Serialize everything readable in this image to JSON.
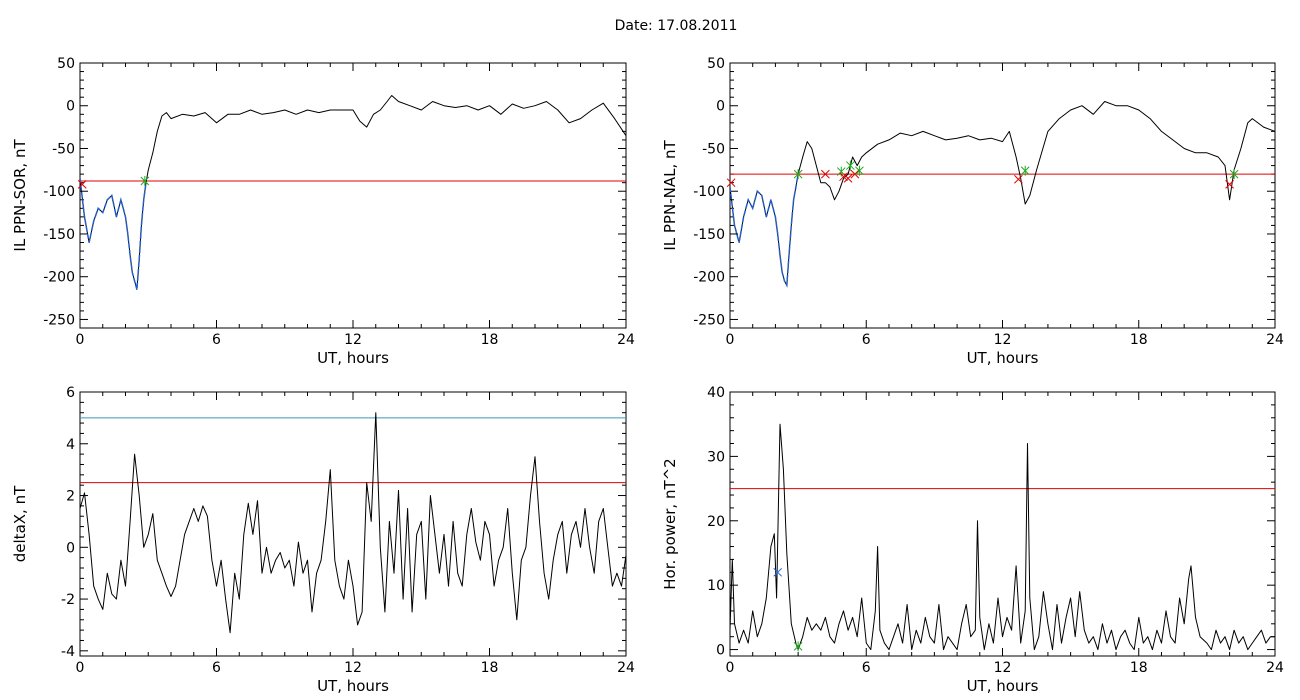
{
  "title": "Date:  17.08.2011",
  "chart_data": [
    {
      "type": "line",
      "xlabel": "UT, hours",
      "ylabel": "IL PPN-SOR, nT",
      "xlim": [
        0,
        24
      ],
      "ylim": [
        -260,
        50
      ],
      "xticks": [
        0,
        6,
        12,
        18,
        24
      ],
      "yticks": [
        -250,
        -200,
        -150,
        -100,
        -50,
        0,
        50
      ],
      "threshold_lines": [
        {
          "value": -88,
          "color": "#e00000"
        }
      ],
      "highlight": {
        "x_range": [
          0,
          2.9
        ],
        "color": "#1f5fd6"
      },
      "markers": [
        {
          "x": 0.1,
          "y": -92,
          "color": "#e00000"
        },
        {
          "x": 2.85,
          "y": -88,
          "color": "#1faa1f"
        }
      ],
      "series": [
        {
          "color": "#000000",
          "x": [
            0,
            0.2,
            0.4,
            0.6,
            0.8,
            1.0,
            1.2,
            1.4,
            1.6,
            1.8,
            2.0,
            2.1,
            2.2,
            2.3,
            2.4,
            2.5,
            2.6,
            2.7,
            2.8,
            2.9,
            3.0,
            3.2,
            3.4,
            3.6,
            3.8,
            4.0,
            4.5,
            5.0,
            5.5,
            6.0,
            6.5,
            7.0,
            7.5,
            8.0,
            8.5,
            9.0,
            9.5,
            10.0,
            10.5,
            11.0,
            11.5,
            12.0,
            12.3,
            12.6,
            12.9,
            13.2,
            13.5,
            13.7,
            14.0,
            14.5,
            15.0,
            15.5,
            16.0,
            16.5,
            17.0,
            17.5,
            18.0,
            18.5,
            19.0,
            19.5,
            20.0,
            20.5,
            21.0,
            21.5,
            22.0,
            22.5,
            23.0,
            23.5,
            24.0
          ],
          "y": [
            -85,
            -130,
            -160,
            -135,
            -120,
            -125,
            -110,
            -105,
            -130,
            -110,
            -130,
            -150,
            -175,
            -195,
            -205,
            -215,
            -180,
            -140,
            -110,
            -90,
            -75,
            -55,
            -30,
            -12,
            -8,
            -15,
            -10,
            -12,
            -8,
            -20,
            -10,
            -10,
            -5,
            -10,
            -8,
            -5,
            -10,
            -5,
            -8,
            -5,
            -5,
            -5,
            -18,
            -25,
            -10,
            -5,
            5,
            12,
            5,
            0,
            -5,
            5,
            0,
            -2,
            0,
            -5,
            0,
            -10,
            2,
            -3,
            0,
            5,
            -5,
            -20,
            -15,
            -5,
            3,
            -15,
            -35
          ]
        }
      ]
    },
    {
      "type": "line",
      "xlabel": "UT, hours",
      "ylabel": "IL PPN-NAL, nT",
      "xlim": [
        0,
        24
      ],
      "ylim": [
        -260,
        50
      ],
      "xticks": [
        0,
        6,
        12,
        18,
        24
      ],
      "yticks": [
        -250,
        -200,
        -150,
        -100,
        -50,
        0,
        50
      ],
      "threshold_lines": [
        {
          "value": -80,
          "color": "#e00000"
        }
      ],
      "highlight": {
        "x_range": [
          0,
          3.0
        ],
        "color": "#1f5fd6"
      },
      "markers": [
        {
          "x": 0.05,
          "y": -90,
          "color": "#e00000"
        },
        {
          "x": 3.0,
          "y": -80,
          "color": "#1faa1f"
        },
        {
          "x": 4.2,
          "y": -80,
          "color": "#e00000"
        },
        {
          "x": 4.9,
          "y": -77,
          "color": "#1faa1f"
        },
        {
          "x": 5.0,
          "y": -83,
          "color": "#e00000"
        },
        {
          "x": 5.2,
          "y": -85,
          "color": "#e00000"
        },
        {
          "x": 5.3,
          "y": -70,
          "color": "#1faa1f"
        },
        {
          "x": 5.5,
          "y": -80,
          "color": "#e00000"
        },
        {
          "x": 5.7,
          "y": -76,
          "color": "#1faa1f"
        },
        {
          "x": 12.7,
          "y": -86,
          "color": "#e00000"
        },
        {
          "x": 13.0,
          "y": -76,
          "color": "#1faa1f"
        },
        {
          "x": 22.0,
          "y": -92,
          "color": "#e00000"
        },
        {
          "x": 22.2,
          "y": -80,
          "color": "#1faa1f"
        }
      ],
      "series": [
        {
          "color": "#000000",
          "x": [
            0,
            0.2,
            0.4,
            0.6,
            0.8,
            1.0,
            1.2,
            1.4,
            1.6,
            1.8,
            2.0,
            2.1,
            2.2,
            2.3,
            2.4,
            2.5,
            2.6,
            2.7,
            2.8,
            2.9,
            3.0,
            3.2,
            3.4,
            3.6,
            3.8,
            4.0,
            4.2,
            4.4,
            4.6,
            4.8,
            5.0,
            5.2,
            5.4,
            5.6,
            5.8,
            6.0,
            6.5,
            7.0,
            7.5,
            8.0,
            8.5,
            9.0,
            9.5,
            10.0,
            10.5,
            11.0,
            11.5,
            12.0,
            12.3,
            12.6,
            12.8,
            13.0,
            13.2,
            13.5,
            14.0,
            14.5,
            15.0,
            15.5,
            16.0,
            16.5,
            17.0,
            17.5,
            18.0,
            18.5,
            19.0,
            19.5,
            20.0,
            20.5,
            21.0,
            21.5,
            21.8,
            22.0,
            22.2,
            22.5,
            22.8,
            23.0,
            23.5,
            24.0
          ],
          "y": [
            -95,
            -140,
            -160,
            -130,
            -110,
            -120,
            -100,
            -105,
            -130,
            -110,
            -130,
            -150,
            -175,
            -195,
            -205,
            -210,
            -175,
            -140,
            -110,
            -95,
            -80,
            -60,
            -42,
            -50,
            -70,
            -90,
            -90,
            -95,
            -110,
            -100,
            -85,
            -80,
            -60,
            -70,
            -60,
            -55,
            -45,
            -40,
            -32,
            -35,
            -30,
            -35,
            -40,
            -38,
            -35,
            -40,
            -38,
            -42,
            -30,
            -60,
            -85,
            -115,
            -105,
            -75,
            -30,
            -15,
            -5,
            0,
            -10,
            5,
            0,
            0,
            -5,
            -15,
            -30,
            -40,
            -50,
            -55,
            -55,
            -60,
            -70,
            -110,
            -75,
            -50,
            -20,
            -15,
            -25,
            -30
          ]
        }
      ]
    },
    {
      "type": "line",
      "xlabel": "UT, hours",
      "ylabel": "deltaX, nT",
      "xlim": [
        0,
        24
      ],
      "ylim": [
        -4.2,
        6
      ],
      "xticks": [
        0,
        6,
        12,
        18,
        24
      ],
      "yticks": [
        -4,
        -2,
        0,
        2,
        4,
        6
      ],
      "threshold_lines": [
        {
          "value": 5.0,
          "color": "#3a96b8"
        },
        {
          "value": 2.5,
          "color": "#e00000"
        }
      ],
      "markers": [],
      "series": [
        {
          "color": "#000000",
          "x": [
            0,
            0.2,
            0.4,
            0.6,
            0.8,
            1.0,
            1.2,
            1.4,
            1.6,
            1.8,
            2.0,
            2.2,
            2.4,
            2.6,
            2.8,
            3.0,
            3.2,
            3.4,
            3.6,
            3.8,
            4.0,
            4.2,
            4.4,
            4.6,
            4.8,
            5.0,
            5.2,
            5.4,
            5.6,
            5.8,
            6.0,
            6.2,
            6.4,
            6.6,
            6.8,
            7.0,
            7.2,
            7.4,
            7.6,
            7.8,
            8.0,
            8.2,
            8.4,
            8.6,
            8.8,
            9.0,
            9.2,
            9.4,
            9.6,
            9.8,
            10.0,
            10.2,
            10.4,
            10.6,
            10.8,
            11.0,
            11.2,
            11.4,
            11.6,
            11.8,
            12.0,
            12.2,
            12.4,
            12.6,
            12.8,
            13.0,
            13.2,
            13.4,
            13.6,
            13.8,
            14.0,
            14.2,
            14.4,
            14.6,
            14.8,
            15.0,
            15.2,
            15.4,
            15.6,
            15.8,
            16.0,
            16.2,
            16.4,
            16.6,
            16.8,
            17.0,
            17.2,
            17.4,
            17.6,
            17.8,
            18.0,
            18.2,
            18.4,
            18.6,
            18.8,
            19.0,
            19.2,
            19.4,
            19.6,
            19.8,
            20.0,
            20.2,
            20.4,
            20.6,
            20.8,
            21.0,
            21.2,
            21.4,
            21.6,
            21.8,
            22.0,
            22.2,
            22.4,
            22.6,
            22.8,
            23.0,
            23.2,
            23.4,
            23.6,
            23.8,
            24.0
          ],
          "y": [
            1.5,
            2.1,
            0.5,
            -1.5,
            -2.0,
            -2.4,
            -1.0,
            -1.8,
            -2.0,
            -0.5,
            -1.5,
            1.0,
            3.6,
            2.0,
            0.0,
            0.5,
            1.3,
            -0.5,
            -1.0,
            -1.5,
            -1.9,
            -1.5,
            -0.5,
            0.5,
            1.0,
            1.5,
            1.0,
            1.6,
            1.2,
            -0.5,
            -1.5,
            -0.5,
            -2.0,
            -3.3,
            -1.0,
            -2.0,
            0.5,
            1.7,
            0.5,
            1.8,
            -1.0,
            0.0,
            -1.0,
            -0.5,
            -0.2,
            -0.8,
            -0.5,
            -1.5,
            0.2,
            -1.0,
            -0.5,
            -2.5,
            -1.0,
            -0.5,
            1.0,
            3.0,
            -0.5,
            -1.5,
            -2.0,
            -0.5,
            -1.5,
            -3.0,
            -2.5,
            2.5,
            1.0,
            5.2,
            0.0,
            -2.5,
            1.0,
            -1.0,
            2.2,
            -2.0,
            1.5,
            -2.5,
            0.5,
            1.0,
            -2.0,
            2.0,
            0.5,
            -1.0,
            0.5,
            -1.5,
            1.0,
            -1.0,
            -1.5,
            0.5,
            1.5,
            0.2,
            -0.5,
            1.0,
            0.5,
            -1.5,
            -0.5,
            0.0,
            1.5,
            -1.0,
            -2.8,
            -0.5,
            0.0,
            2.0,
            3.5,
            1.0,
            -1.0,
            -2.0,
            -0.5,
            0.5,
            1.0,
            -1.0,
            0.5,
            1.0,
            0.0,
            1.5,
            0.0,
            -1.0,
            1.0,
            1.5,
            0.0,
            -1.5,
            -1.0,
            -1.5,
            -0.3
          ]
        }
      ]
    },
    {
      "type": "line",
      "xlabel": "UT, hours",
      "ylabel": "Hor. power, nT^2",
      "xlim": [
        0,
        24
      ],
      "ylim": [
        -1,
        40
      ],
      "xticks": [
        0,
        6,
        12,
        18,
        24
      ],
      "yticks": [
        0,
        10,
        20,
        30,
        40
      ],
      "threshold_lines": [
        {
          "value": 25,
          "color": "#e00000"
        }
      ],
      "markers": [
        {
          "x": 2.1,
          "y": 12,
          "color": "#1f5fd6"
        },
        {
          "x": 3.0,
          "y": 0.5,
          "color": "#1faa1f"
        }
      ],
      "series": [
        {
          "color": "#000000",
          "x": [
            0,
            0.1,
            0.2,
            0.4,
            0.6,
            0.8,
            1.0,
            1.2,
            1.4,
            1.6,
            1.8,
            1.95,
            2.05,
            2.2,
            2.35,
            2.5,
            2.7,
            2.9,
            3.0,
            3.2,
            3.4,
            3.6,
            3.8,
            4.0,
            4.2,
            4.4,
            4.6,
            4.8,
            5.0,
            5.2,
            5.4,
            5.6,
            5.8,
            6.0,
            6.2,
            6.4,
            6.5,
            6.6,
            6.8,
            7.0,
            7.2,
            7.4,
            7.6,
            7.8,
            8.0,
            8.2,
            8.4,
            8.6,
            8.8,
            9.0,
            9.2,
            9.4,
            9.6,
            9.8,
            10.0,
            10.2,
            10.4,
            10.6,
            10.8,
            10.9,
            11.0,
            11.2,
            11.4,
            11.6,
            11.8,
            12.0,
            12.2,
            12.4,
            12.6,
            12.8,
            13.0,
            13.1,
            13.2,
            13.4,
            13.6,
            13.8,
            14.0,
            14.2,
            14.4,
            14.6,
            14.8,
            15.0,
            15.2,
            15.4,
            15.6,
            15.8,
            16.0,
            16.2,
            16.4,
            16.6,
            16.8,
            17.0,
            17.2,
            17.4,
            17.6,
            17.8,
            18.0,
            18.2,
            18.4,
            18.6,
            18.8,
            19.0,
            19.2,
            19.4,
            19.6,
            19.8,
            20.0,
            20.2,
            20.3,
            20.5,
            20.7,
            21.0,
            21.2,
            21.4,
            21.6,
            21.8,
            22.0,
            22.2,
            22.4,
            22.6,
            22.8,
            23.0,
            23.2,
            23.4,
            23.6,
            23.8,
            24.0
          ],
          "y": [
            3,
            14,
            4,
            1,
            3,
            1,
            6,
            2,
            4,
            8,
            16,
            18,
            8,
            35,
            28,
            15,
            4,
            1,
            0,
            2,
            5,
            3,
            4,
            3,
            5,
            2,
            1,
            4,
            6,
            3,
            5,
            2,
            8,
            1,
            0,
            6,
            16,
            3,
            1,
            0,
            2,
            4,
            1,
            7,
            0,
            3,
            1,
            5,
            2,
            1,
            7,
            0,
            2,
            1,
            0,
            4,
            7,
            2,
            3,
            20,
            5,
            0,
            4,
            1,
            8,
            2,
            5,
            3,
            13,
            1,
            6,
            32,
            8,
            0,
            2,
            9,
            4,
            0,
            7,
            1,
            5,
            8,
            2,
            9,
            3,
            1,
            2,
            0,
            4,
            1,
            3,
            0,
            2,
            3,
            1,
            0,
            5,
            1,
            2,
            0,
            3,
            1,
            6,
            2,
            1,
            8,
            4,
            11,
            13,
            5,
            2,
            1,
            0,
            3,
            1,
            2,
            0,
            3,
            1,
            2,
            0,
            1,
            2,
            3,
            1,
            2,
            2
          ]
        }
      ]
    }
  ]
}
